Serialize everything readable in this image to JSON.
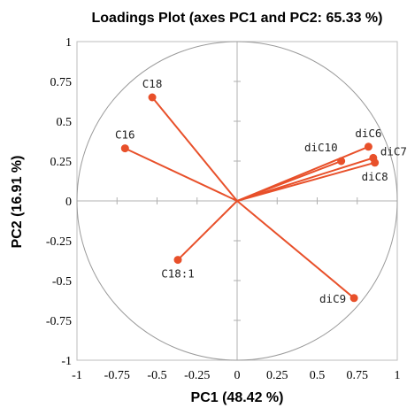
{
  "chart_data": {
    "type": "scatter",
    "title": "Loadings Plot (axes PC1 and PC2: 65.33 %)",
    "xlabel": "PC1 (48.42 %)",
    "ylabel": "PC2 (16.91 %)",
    "xlim": [
      -1,
      1
    ],
    "ylim": [
      -1,
      1
    ],
    "x_ticks": [
      "-1",
      "-0.75",
      "-0.5",
      "-0.25",
      "0",
      "0.25",
      "0.5",
      "0.75",
      "1"
    ],
    "y_ticks": [
      "1",
      "0.75",
      "0.5",
      "0.25",
      "0",
      "-0.25",
      "-0.5",
      "-0.75",
      "-1"
    ],
    "grid": false,
    "correlation_circle": true,
    "vectors_from_origin": true,
    "series_color": "#e8502a",
    "points": [
      {
        "label": "C18",
        "x": -0.53,
        "y": 0.65,
        "label_pos": "above"
      },
      {
        "label": "C16",
        "x": -0.7,
        "y": 0.33,
        "label_pos": "above"
      },
      {
        "label": "C18:1",
        "x": -0.37,
        "y": -0.37,
        "label_pos": "below"
      },
      {
        "label": "diC6",
        "x": 0.82,
        "y": 0.34,
        "label_pos": "above"
      },
      {
        "label": "diC10",
        "x": 0.65,
        "y": 0.25,
        "label_pos": "above-left"
      },
      {
        "label": "diC7",
        "x": 0.85,
        "y": 0.27,
        "label_pos": "right"
      },
      {
        "label": "diC8",
        "x": 0.86,
        "y": 0.24,
        "label_pos": "below"
      },
      {
        "label": "diC9",
        "x": 0.73,
        "y": -0.61,
        "label_pos": "left"
      }
    ]
  }
}
